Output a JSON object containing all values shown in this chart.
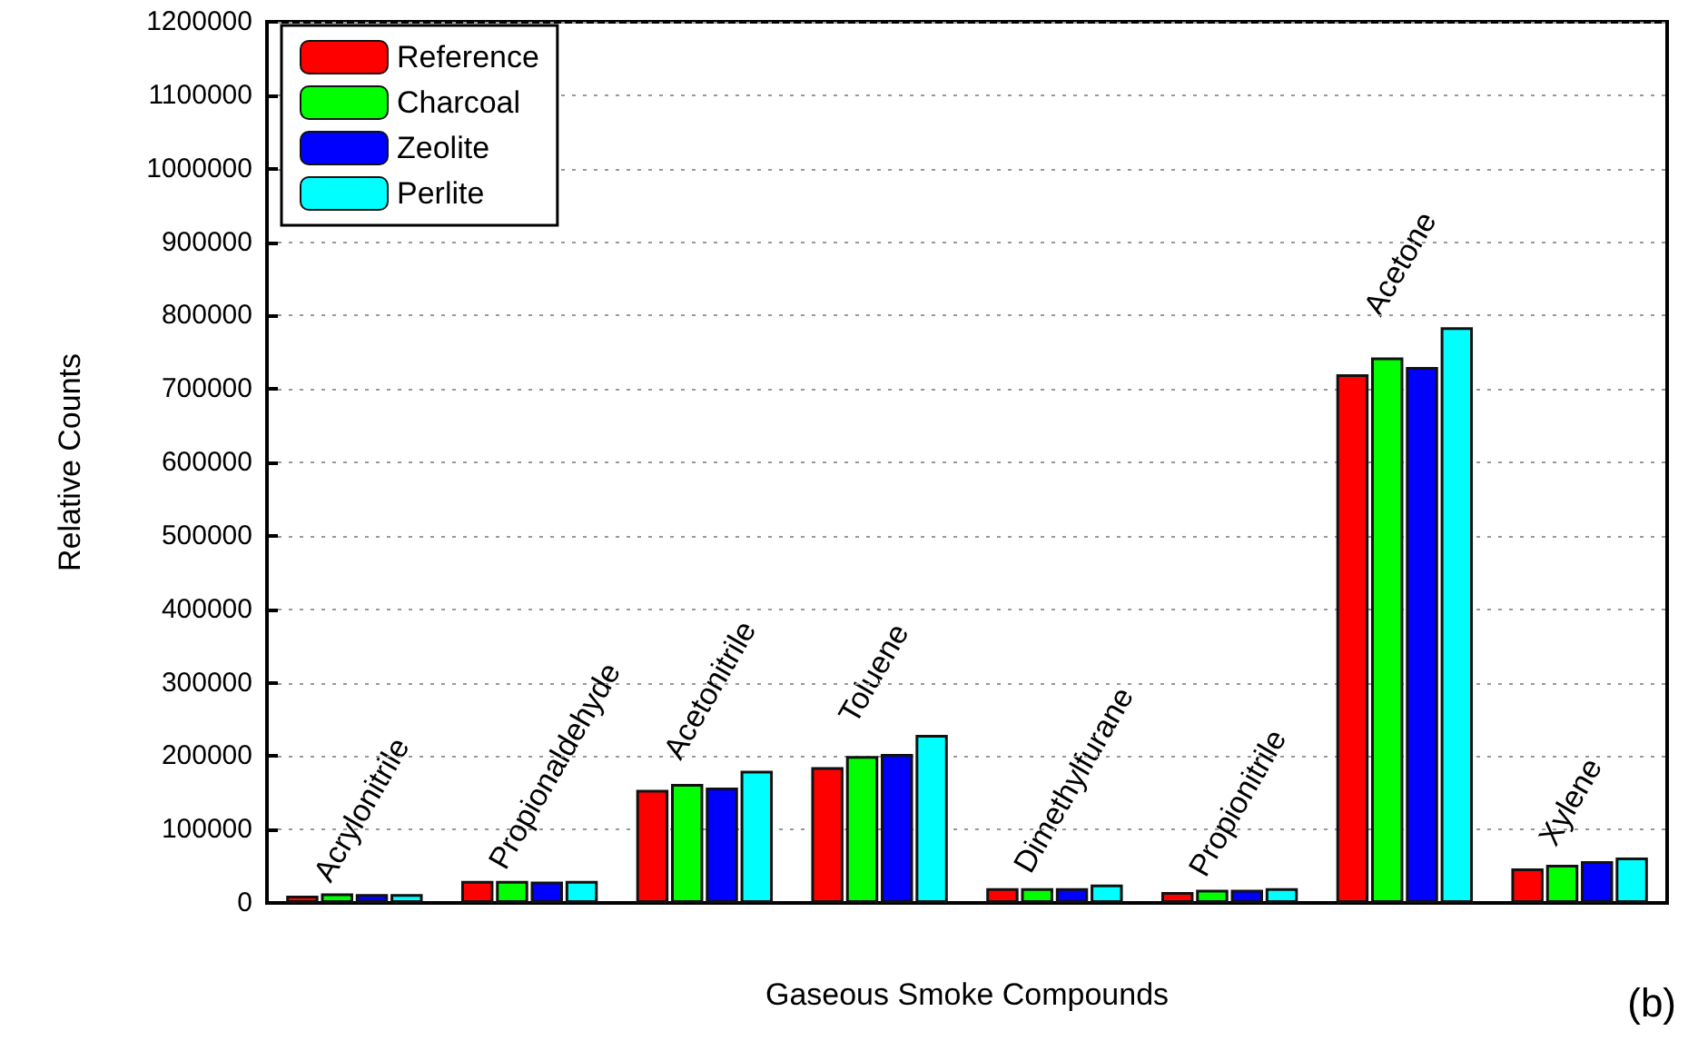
{
  "chart_data": {
    "type": "bar",
    "xlabel": "Gaseous Smoke Compounds",
    "ylabel": "Relative Counts",
    "categories": [
      "Acrylonitrile",
      "Propionaldehyde",
      "Acetonitrile",
      "Toluene",
      "Dimethylfurane",
      "Propionitrile",
      "Acetone",
      "Xylene"
    ],
    "series": [
      {
        "name": "Reference",
        "color": "#ff0000",
        "values": [
          10000,
          30000,
          154000,
          185000,
          20000,
          15000,
          720000,
          47000
        ]
      },
      {
        "name": "Charcoal",
        "color": "#00ff00",
        "values": [
          13000,
          30000,
          162000,
          200000,
          20000,
          18000,
          743000,
          52000
        ]
      },
      {
        "name": "Zeolite",
        "color": "#0000ff",
        "values": [
          12000,
          29000,
          157000,
          203000,
          20000,
          18000,
          730000,
          57000
        ]
      },
      {
        "name": "Perlite",
        "color": "#00ffff",
        "values": [
          12000,
          30000,
          180000,
          229000,
          25000,
          20000,
          784000,
          62000
        ]
      }
    ],
    "ylim": [
      0,
      1200000
    ],
    "yticks": [
      0,
      100000,
      200000,
      300000,
      400000,
      500000,
      600000,
      700000,
      800000,
      900000,
      1000000,
      1100000,
      1200000
    ],
    "grid": "y",
    "legend": "top left",
    "annotations": [
      "(b)"
    ]
  }
}
